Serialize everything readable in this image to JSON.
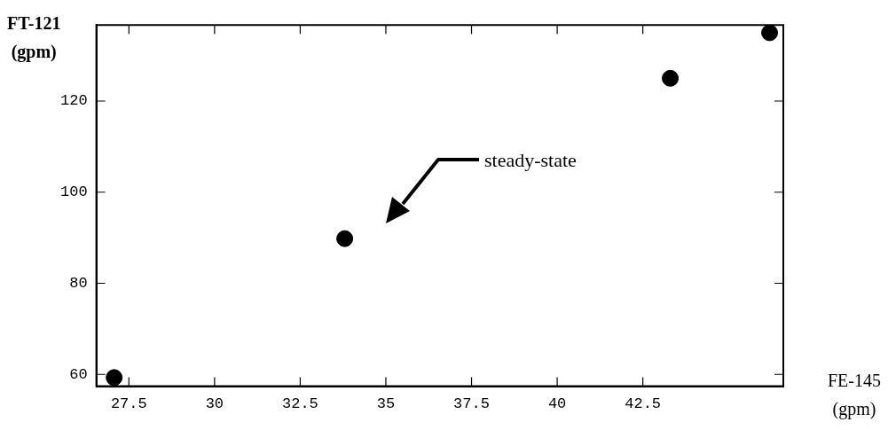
{
  "chart_data": {
    "type": "scatter",
    "xlabel": "FE-145\n(gpm)",
    "ylabel": "FT-121\n(gpm)",
    "x": [
      27.07,
      33.8,
      43.3,
      46.2
    ],
    "series": [
      {
        "color": "#000000",
        "values": [
          59.3,
          89.8,
          125,
          135
        ]
      }
    ],
    "xlim": [
      26.55,
      46.6
    ],
    "xticks": [
      27.5,
      30,
      32.5,
      35,
      37.5,
      40,
      42.5
    ],
    "ylim": [
      57.4,
      136.7
    ],
    "yticks": [
      60,
      80,
      100,
      120
    ],
    "marker": "circle",
    "legend": false,
    "annotations": [
      "steady-state"
    ]
  }
}
